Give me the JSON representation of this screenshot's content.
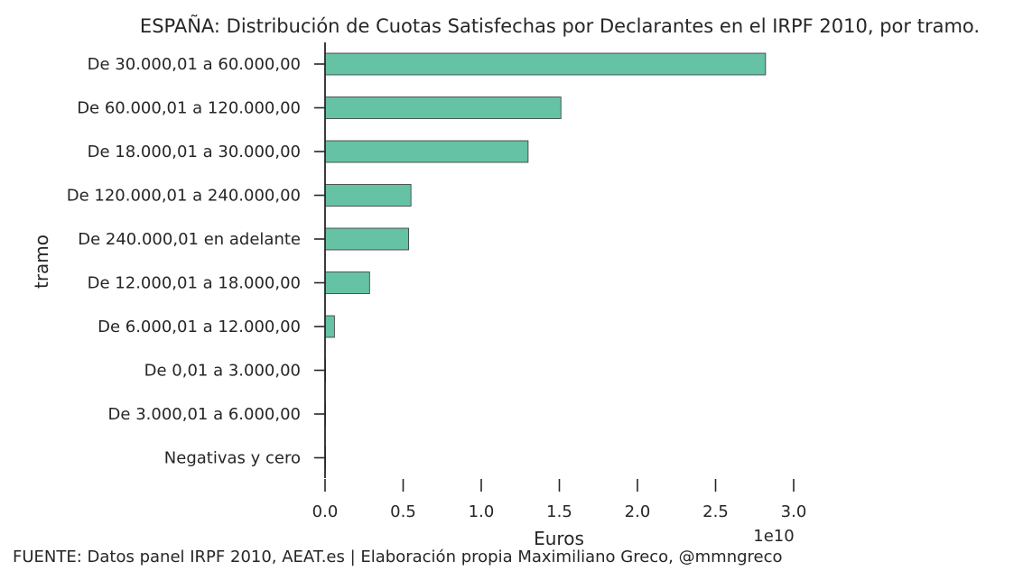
{
  "chart_data": {
    "type": "bar",
    "orientation": "horizontal",
    "title": "ESPAÑA: Distribución de Cuotas Satisfechas por Declarantes en el IRPF 2010, por tramo.",
    "xlabel": "Euros",
    "ylabel": "tramo",
    "x_scale_label": "1e10",
    "xlim": [
      0,
      3.0
    ],
    "x_ticks": [
      "0.0",
      "0.5",
      "1.0",
      "1.5",
      "2.0",
      "2.5",
      "3.0"
    ],
    "grid": false,
    "bar_color": "#66c2a5",
    "categories": [
      "De 30.000,01 a 60.000,00",
      "De 60.000,01 a 120.000,00",
      "De 18.000,01 a 30.000,00",
      "De 120.000,01 a 240.000,00",
      "De 240.000,01 en adelante",
      "De 12.000,01 a 18.000,00",
      "De 6.000,01 a 12.000,00",
      "De 0,01 a 3.000,00",
      "De 3.000,01 a 6.000,00",
      "Negativas y cero"
    ],
    "values": [
      2.82,
      1.51,
      1.3,
      0.55,
      0.535,
      0.285,
      0.06,
      0.002,
      0.002,
      0.0
    ]
  },
  "footer": "FUENTE: Datos panel IRPF 2010, AEAT.es | Elaboración propia Maximiliano Greco, @mmngreco"
}
